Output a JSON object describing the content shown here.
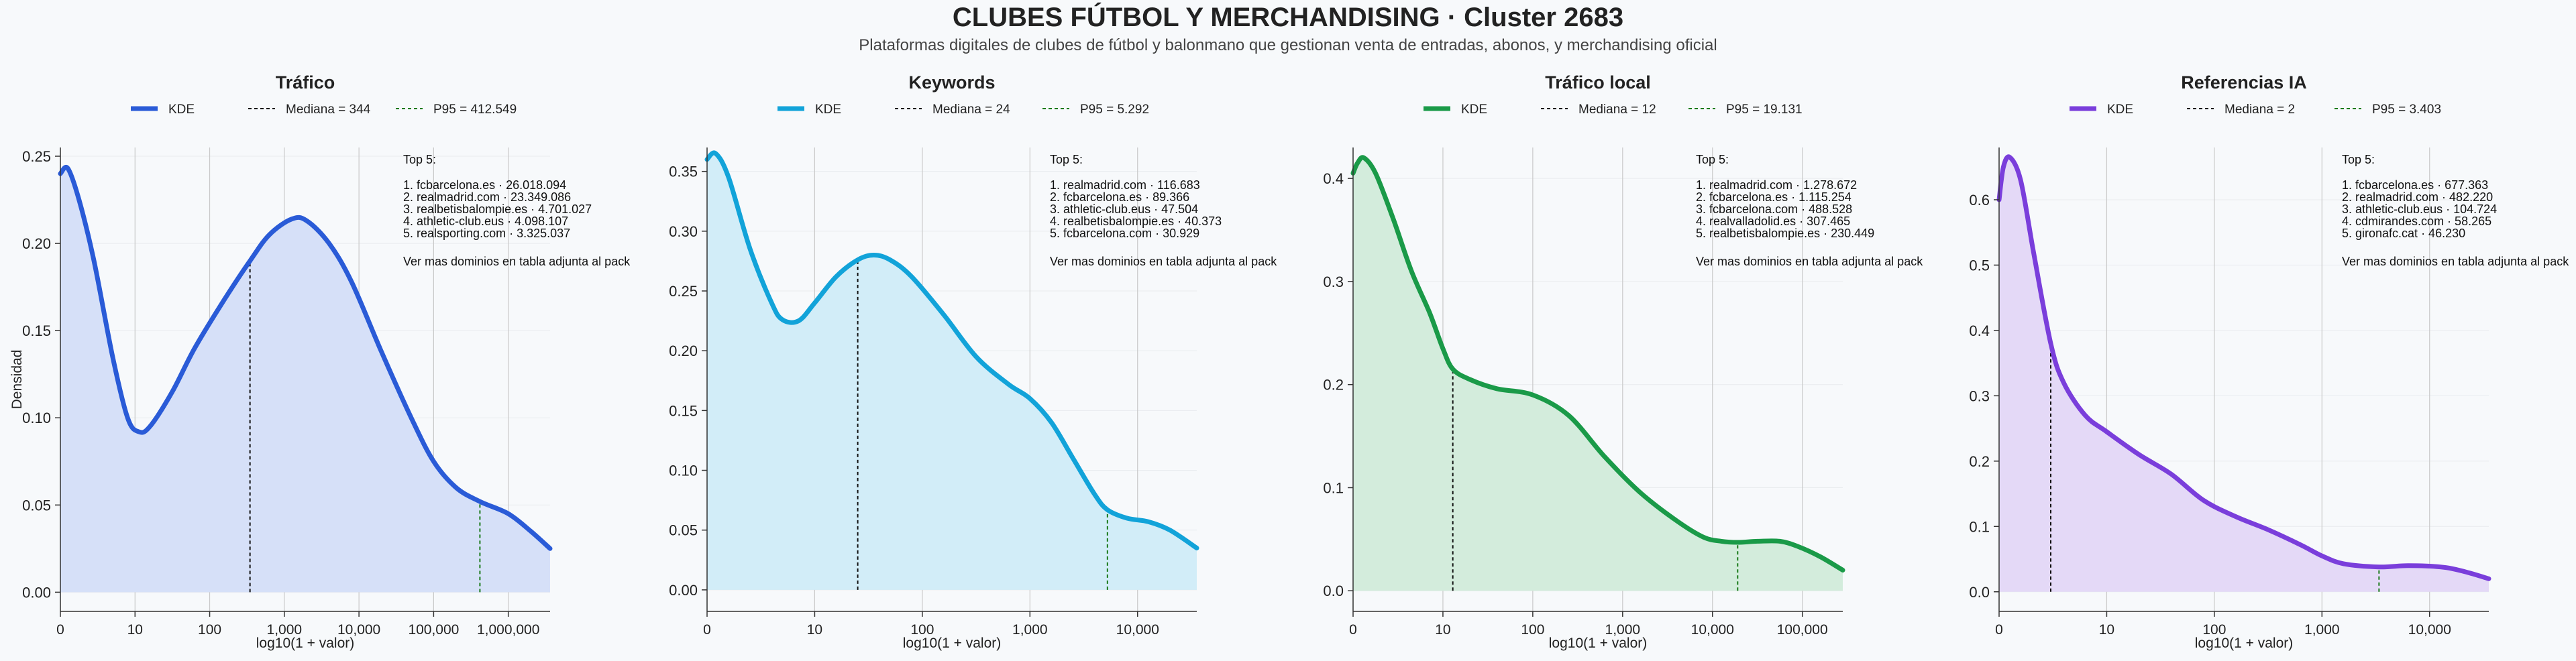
{
  "page": {
    "title": "CLUBES FÚTBOL Y MERCHANDISING · Cluster 2683",
    "subtitle": "Plataformas digitales de clubes de fútbol y balonmano que gestionan venta de entradas, abonos, y merchandising oficial"
  },
  "legend_labels": {
    "kde": "KDE"
  },
  "chart_data": [
    {
      "type": "area",
      "title": "Tráfico",
      "xlabel": "log10(1 + valor)",
      "ylabel": "Densidad",
      "color": "#2a5bd7",
      "fill": "#d6e0f8",
      "xlim": [
        0,
        6.56
      ],
      "ylim": [
        -0.011,
        0.255
      ],
      "xticks": [
        {
          "x": 0,
          "label": "0"
        },
        {
          "x": 1,
          "label": "10"
        },
        {
          "x": 2,
          "label": "100"
        },
        {
          "x": 3,
          "label": "1,000"
        },
        {
          "x": 4,
          "label": "10,000"
        },
        {
          "x": 5,
          "label": "100,000"
        },
        {
          "x": 6,
          "label": "1,000,000"
        }
      ],
      "yticks": [
        0,
        0.05,
        0.1,
        0.15,
        0.2,
        0.25
      ],
      "ytick_labels": [
        "0.00",
        "0.05",
        "0.10",
        "0.15",
        "0.20",
        "0.25"
      ],
      "median": {
        "label": "Mediana = 344",
        "x": 2.54
      },
      "p95": {
        "label": "P95 = 412.549",
        "x": 5.62
      },
      "kde": {
        "x": [
          0,
          0.1,
          0.25,
          0.45,
          0.7,
          0.9,
          1.05,
          1.2,
          1.5,
          1.8,
          2.2,
          2.54,
          2.8,
          3.1,
          3.3,
          3.6,
          3.9,
          4.3,
          4.7,
          5.0,
          5.3,
          5.62,
          6.0,
          6.3,
          6.56
        ],
        "y": [
          0.24,
          0.243,
          0.225,
          0.19,
          0.135,
          0.1,
          0.092,
          0.095,
          0.115,
          0.14,
          0.168,
          0.19,
          0.205,
          0.214,
          0.213,
          0.2,
          0.178,
          0.138,
          0.1,
          0.075,
          0.06,
          0.052,
          0.045,
          0.035,
          0.025
        ]
      },
      "top5_title": "Top 5:",
      "top5": [
        "1. fcbarcelona.es · 26.018.094",
        "2. realmadrid.com · 23.349.086",
        "3. realbetisbalompie.es · 4.701.027",
        "4. athletic-club.eus · 4.098.107",
        "5. realsporting.com · 3.325.037"
      ],
      "note": "Ver mas dominios en tabla adjunta al pack"
    },
    {
      "type": "area",
      "title": "Keywords",
      "xlabel": "log10(1 + valor)",
      "ylabel": "",
      "color": "#12a3d9",
      "fill": "#d2edf8",
      "xlim": [
        0,
        4.55
      ],
      "ylim": [
        -0.018,
        0.37
      ],
      "xticks": [
        {
          "x": 0,
          "label": "0"
        },
        {
          "x": 1,
          "label": "10"
        },
        {
          "x": 2,
          "label": "100"
        },
        {
          "x": 3,
          "label": "1,000"
        },
        {
          "x": 4,
          "label": "10,000"
        }
      ],
      "yticks": [
        0,
        0.05,
        0.1,
        0.15,
        0.2,
        0.25,
        0.3,
        0.35
      ],
      "ytick_labels": [
        "0.00",
        "0.05",
        "0.10",
        "0.15",
        "0.20",
        "0.25",
        "0.30",
        "0.35"
      ],
      "median": {
        "label": "Mediana = 24",
        "x": 1.4
      },
      "p95": {
        "label": "P95 = 5.292",
        "x": 3.72
      },
      "kde": {
        "x": [
          0,
          0.08,
          0.2,
          0.4,
          0.6,
          0.7,
          0.85,
          1.0,
          1.2,
          1.4,
          1.55,
          1.7,
          1.9,
          2.2,
          2.5,
          2.8,
          3.0,
          3.2,
          3.4,
          3.6,
          3.72,
          3.9,
          4.1,
          4.3,
          4.55
        ],
        "y": [
          0.36,
          0.365,
          0.345,
          0.285,
          0.24,
          0.226,
          0.225,
          0.24,
          0.262,
          0.276,
          0.28,
          0.276,
          0.262,
          0.23,
          0.195,
          0.172,
          0.16,
          0.14,
          0.11,
          0.08,
          0.067,
          0.06,
          0.057,
          0.05,
          0.035
        ]
      },
      "top5_title": "Top 5:",
      "top5": [
        "1. realmadrid.com · 116.683",
        "2. fcbarcelona.es · 89.366",
        "3. athletic-club.eus · 47.504",
        "4. realbetisbalompie.es · 40.373",
        "5. fcbarcelona.com · 30.929"
      ],
      "note": "Ver mas dominios en tabla adjunta al pack"
    },
    {
      "type": "area",
      "title": "Tráfico local",
      "xlabel": "log10(1 + valor)",
      "ylabel": "",
      "color": "#1a9a48",
      "fill": "#d3ecdc",
      "xlim": [
        0,
        5.45
      ],
      "ylim": [
        -0.02,
        0.43
      ],
      "xticks": [
        {
          "x": 0,
          "label": "0"
        },
        {
          "x": 1,
          "label": "10"
        },
        {
          "x": 2,
          "label": "100"
        },
        {
          "x": 3,
          "label": "1,000"
        },
        {
          "x": 4,
          "label": "10,000"
        },
        {
          "x": 5,
          "label": "100,000"
        }
      ],
      "yticks": [
        0,
        0.1,
        0.2,
        0.3,
        0.4
      ],
      "ytick_labels": [
        "0.0",
        "0.1",
        "0.2",
        "0.3",
        "0.4"
      ],
      "median": {
        "label": "Mediana = 12",
        "x": 1.11
      },
      "p95": {
        "label": "P95 = 19.131",
        "x": 4.28
      },
      "kde": {
        "x": [
          0,
          0.05,
          0.12,
          0.25,
          0.45,
          0.65,
          0.85,
          1.0,
          1.11,
          1.3,
          1.6,
          2.0,
          2.4,
          2.8,
          3.2,
          3.6,
          3.9,
          4.1,
          4.28,
          4.5,
          4.75,
          4.95,
          5.2,
          5.45
        ],
        "y": [
          0.405,
          0.415,
          0.42,
          0.405,
          0.36,
          0.31,
          0.27,
          0.235,
          0.215,
          0.205,
          0.196,
          0.19,
          0.17,
          0.13,
          0.095,
          0.068,
          0.052,
          0.048,
          0.047,
          0.048,
          0.048,
          0.043,
          0.033,
          0.02
        ]
      },
      "top5_title": "Top 5:",
      "top5": [
        "1. realmadrid.com · 1.278.672",
        "2. fcbarcelona.es · 1.115.254",
        "3. fcbarcelona.com · 488.528",
        "4. realvalladolid.es · 307.465",
        "5. realbetisbalompie.es · 230.449"
      ],
      "note": "Ver mas dominios en tabla adjunta al pack"
    },
    {
      "type": "area",
      "title": "Referencias IA",
      "xlabel": "log10(1 + valor)",
      "ylabel": "",
      "color": "#7a3edb",
      "fill": "#e4d9f7",
      "xlim": [
        0,
        4.55
      ],
      "ylim": [
        -0.03,
        0.68
      ],
      "xticks": [
        {
          "x": 0,
          "label": "0"
        },
        {
          "x": 1,
          "label": "10"
        },
        {
          "x": 2,
          "label": "100"
        },
        {
          "x": 3,
          "label": "1,000"
        },
        {
          "x": 4,
          "label": "10,000"
        }
      ],
      "yticks": [
        0,
        0.1,
        0.2,
        0.3,
        0.4,
        0.5,
        0.6
      ],
      "ytick_labels": [
        "0.0",
        "0.1",
        "0.2",
        "0.3",
        "0.4",
        "0.5",
        "0.6"
      ],
      "median": {
        "label": "Mediana = 2",
        "x": 0.48
      },
      "p95": {
        "label": "P95 = 3.403",
        "x": 3.53
      },
      "kde": {
        "x": [
          0,
          0.04,
          0.1,
          0.2,
          0.32,
          0.48,
          0.6,
          0.8,
          1.0,
          1.3,
          1.6,
          1.9,
          2.2,
          2.5,
          2.8,
          3.0,
          3.2,
          3.53,
          3.8,
          4.1,
          4.3,
          4.55
        ],
        "y": [
          0.6,
          0.65,
          0.665,
          0.63,
          0.52,
          0.38,
          0.32,
          0.27,
          0.245,
          0.21,
          0.18,
          0.14,
          0.115,
          0.095,
          0.072,
          0.055,
          0.043,
          0.038,
          0.04,
          0.038,
          0.032,
          0.02
        ]
      },
      "top5_title": "Top 5:",
      "top5": [
        "1. fcbarcelona.es · 677.363",
        "2. realmadrid.com · 482.220",
        "3. athletic-club.eus · 104.724",
        "4. cdmirandes.com · 58.265",
        "5. gironafc.cat · 46.230"
      ],
      "note": "Ver mas dominios en tabla adjunta al pack"
    }
  ]
}
